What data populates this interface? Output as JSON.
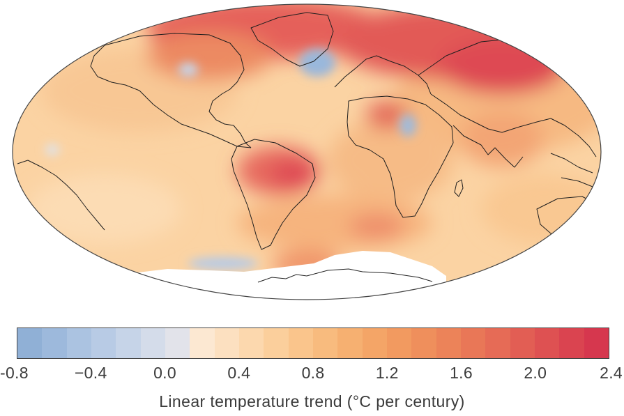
{
  "colorbar": {
    "ticks": [
      "-0.8",
      "−0.4",
      "0.0",
      "0.4",
      "0.8",
      "1.2",
      "1.6",
      "2.0",
      "2.4"
    ],
    "label": "Linear temperature trend (°C per century)",
    "colors": [
      "#90b0d6",
      "#9db9dc",
      "#abc3e1",
      "#b8cbe5",
      "#c6d4e8",
      "#d4dcea",
      "#e2e3ea",
      "#fce8d2",
      "#fce0c0",
      "#fcd8ae",
      "#fbcf9c",
      "#fac58c",
      "#f8bb7e",
      "#f6b071",
      "#f4a567",
      "#f29a60",
      "#ef8f5c",
      "#ec8359",
      "#e97757",
      "#e66b56",
      "#e25e54",
      "#de5152",
      "#da4450",
      "#d6374e"
    ]
  }
}
